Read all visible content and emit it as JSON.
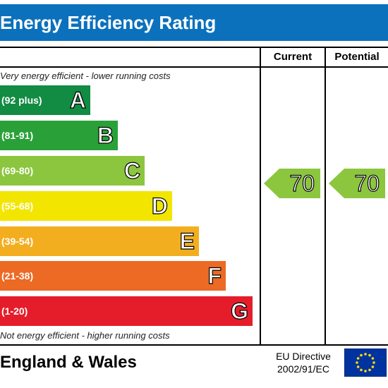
{
  "title": "Energy Efficiency Rating",
  "columns": {
    "current": "Current",
    "potential": "Potential"
  },
  "notes": {
    "top": "Very energy efficient - lower running costs",
    "bottom": "Not energy efficient - higher running costs"
  },
  "bands": [
    {
      "letter": "A",
      "range": "(92 plus)",
      "color": "#128b43"
    },
    {
      "letter": "B",
      "range": "(81-91)",
      "color": "#2aa138"
    },
    {
      "letter": "C",
      "range": "(69-80)",
      "color": "#8cc63e"
    },
    {
      "letter": "D",
      "range": "(55-68)",
      "color": "#f2e600"
    },
    {
      "letter": "E",
      "range": "(39-54)",
      "color": "#f3ae20"
    },
    {
      "letter": "F",
      "range": "(21-38)",
      "color": "#ec6a23"
    },
    {
      "letter": "G",
      "range": "(1-20)",
      "color": "#e51d2a"
    }
  ],
  "current": {
    "value": "70",
    "band": "C",
    "color": "#8cc63e"
  },
  "potential": {
    "value": "70",
    "band": "C",
    "color": "#8cc63e"
  },
  "footer": {
    "region": "England & Wales",
    "directive_line1": "EU Directive",
    "directive_line2": "2002/91/EC",
    "flag_icon": "eu-flag-icon"
  }
}
